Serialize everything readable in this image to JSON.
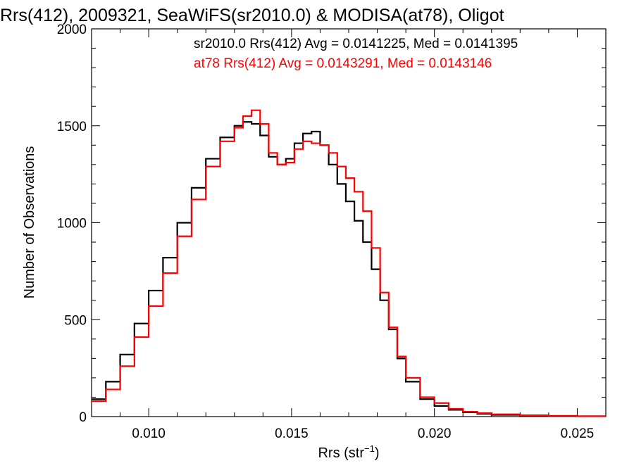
{
  "chart_data": {
    "type": "line",
    "style": "step",
    "title": "Rrs(412), 2009321, SeaWiFS(sr2010.0) & MODISA(at78), Oligot",
    "xlabel_main": "Rrs (str",
    "xlabel_sup": "−1",
    "xlabel_tail": ")",
    "ylabel": "Number of Observations",
    "xlim": [
      0.008,
      0.026
    ],
    "ylim": [
      0,
      2000
    ],
    "xticks": [
      0.01,
      0.015,
      0.02,
      0.025
    ],
    "xtick_labels": [
      "0.010",
      "0.015",
      "0.020",
      "0.025"
    ],
    "yticks": [
      0,
      500,
      1000,
      1500,
      2000
    ],
    "ytick_labels": [
      "0",
      "500",
      "1000",
      "1500",
      "2000"
    ],
    "grid": false,
    "legend_placement": "top-right",
    "series": [
      {
        "name": "sr2010.0",
        "annotation": "sr2010.0 Rrs(412) Avg = 0.0141225, Med = 0.0141395",
        "color": "#000000",
        "x": [
          0.008,
          0.0085,
          0.009,
          0.0095,
          0.01,
          0.0105,
          0.011,
          0.0115,
          0.012,
          0.0125,
          0.013,
          0.0133,
          0.0136,
          0.0139,
          0.0142,
          0.0145,
          0.0148,
          0.0151,
          0.0154,
          0.0157,
          0.016,
          0.0163,
          0.0166,
          0.0169,
          0.0172,
          0.0175,
          0.0178,
          0.0181,
          0.0184,
          0.0187,
          0.019,
          0.0195,
          0.02,
          0.0205,
          0.021,
          0.0215,
          0.022,
          0.023,
          0.024,
          0.025,
          0.026
        ],
        "y": [
          90,
          180,
          320,
          480,
          650,
          820,
          1000,
          1180,
          1330,
          1440,
          1500,
          1520,
          1510,
          1450,
          1340,
          1300,
          1330,
          1410,
          1460,
          1470,
          1400,
          1300,
          1200,
          1110,
          1010,
          900,
          760,
          600,
          450,
          300,
          180,
          90,
          55,
          35,
          22,
          14,
          9,
          5,
          3,
          2,
          1
        ]
      },
      {
        "name": "at78",
        "annotation": "at78 Rrs(412) Avg = 0.0143291, Med = 0.0143146",
        "color": "#ff0000",
        "x": [
          0.008,
          0.0085,
          0.009,
          0.0095,
          0.01,
          0.0105,
          0.011,
          0.0115,
          0.012,
          0.0125,
          0.013,
          0.0133,
          0.0136,
          0.0139,
          0.0142,
          0.0145,
          0.0148,
          0.0151,
          0.0154,
          0.0157,
          0.016,
          0.0163,
          0.0166,
          0.0169,
          0.0172,
          0.0175,
          0.0178,
          0.0181,
          0.0184,
          0.0187,
          0.019,
          0.0195,
          0.02,
          0.0205,
          0.021,
          0.0215,
          0.022,
          0.023,
          0.024,
          0.025,
          0.026
        ],
        "y": [
          80,
          140,
          260,
          410,
          570,
          740,
          930,
          1120,
          1290,
          1420,
          1490,
          1550,
          1580,
          1510,
          1360,
          1300,
          1310,
          1380,
          1420,
          1410,
          1400,
          1360,
          1290,
          1230,
          1160,
          1060,
          870,
          640,
          460,
          310,
          200,
          100,
          70,
          40,
          25,
          18,
          12,
          7,
          4,
          2,
          1
        ]
      }
    ]
  }
}
